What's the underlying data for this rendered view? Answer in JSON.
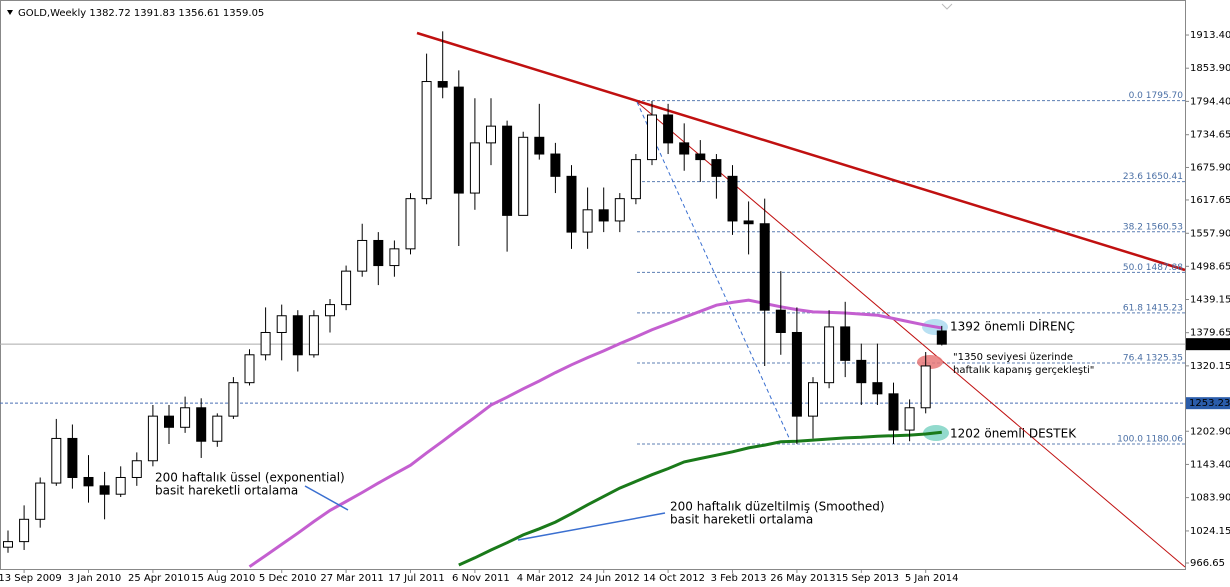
{
  "chart_data": {
    "type": "candlestick",
    "title": "GOLD,Weekly  1382.72 1391.83 1356.61 1359.05",
    "categories": [
      null,
      "13 Sep 2009",
      null,
      null,
      null,
      "3 Jan 2010",
      null,
      null,
      null,
      "25 Apr 2010",
      null,
      null,
      null,
      "15 Aug 2010",
      null,
      null,
      null,
      "5 Dec 2010",
      null,
      null,
      null,
      "27 Mar 2011",
      null,
      null,
      null,
      "17 Jul 2011",
      null,
      null,
      null,
      "6 Nov 2011",
      null,
      null,
      null,
      "4 Mar 2012",
      null,
      null,
      null,
      "24 Jun 2012",
      null,
      null,
      null,
      "14 Oct 2012",
      null,
      null,
      null,
      "3 Feb 2013",
      null,
      null,
      null,
      "26 May 2013",
      null,
      null,
      null,
      "15 Sep 2013",
      null,
      null,
      null,
      "5 Jan 2014",
      null
    ],
    "open": [
      995,
      1005,
      1045,
      1110,
      1190,
      1120,
      1105,
      1090,
      1120,
      1150,
      1230,
      1210,
      1245,
      1185,
      1230,
      1290,
      1340,
      1380,
      1410,
      1340,
      1410,
      1430,
      1490,
      1545,
      1500,
      1530,
      1620,
      1830,
      1820,
      1630,
      1720,
      1750,
      1590,
      1730,
      1700,
      1660,
      1560,
      1600,
      1580,
      1620,
      1690,
      1770,
      1720,
      1700,
      1690,
      1660,
      1580,
      1575,
      1420,
      1380,
      1230,
      1290,
      1390,
      1330,
      1290,
      1270,
      1205,
      1245,
      1382.72
    ],
    "high": [
      1025,
      1070,
      1120,
      1225,
      1215,
      1160,
      1130,
      1140,
      1165,
      1250,
      1250,
      1265,
      1262,
      1235,
      1300,
      1350,
      1425,
      1430,
      1420,
      1420,
      1440,
      1500,
      1575,
      1560,
      1545,
      1630,
      1880,
      1920,
      1850,
      1800,
      1800,
      1760,
      1740,
      1790,
      1720,
      1680,
      1640,
      1640,
      1630,
      1700,
      1795,
      1790,
      1755,
      1725,
      1700,
      1680,
      1615,
      1620,
      1490,
      1425,
      1300,
      1420,
      1435,
      1360,
      1360,
      1290,
      1260,
      1345,
      1391.83
    ],
    "low": [
      985,
      990,
      1030,
      1105,
      1100,
      1075,
      1045,
      1085,
      1105,
      1140,
      1180,
      1200,
      1155,
      1175,
      1225,
      1285,
      1330,
      1330,
      1310,
      1335,
      1380,
      1420,
      1480,
      1465,
      1480,
      1520,
      1610,
      1800,
      1535,
      1600,
      1680,
      1525,
      1590,
      1690,
      1630,
      1530,
      1530,
      1560,
      1560,
      1610,
      1680,
      1700,
      1670,
      1650,
      1620,
      1555,
      1520,
      1320,
      1340,
      1180,
      1190,
      1280,
      1300,
      1250,
      1250,
      1180,
      1185,
      1235,
      1356.61
    ],
    "close": [
      1005,
      1045,
      1110,
      1190,
      1120,
      1105,
      1090,
      1120,
      1150,
      1230,
      1210,
      1245,
      1185,
      1230,
      1290,
      1340,
      1380,
      1410,
      1340,
      1410,
      1430,
      1490,
      1545,
      1500,
      1530,
      1620,
      1830,
      1820,
      1630,
      1720,
      1750,
      1590,
      1730,
      1700,
      1660,
      1560,
      1600,
      1580,
      1620,
      1690,
      1770,
      1720,
      1700,
      1690,
      1660,
      1580,
      1575,
      1420,
      1380,
      1230,
      1290,
      1390,
      1330,
      1290,
      1270,
      1205,
      1245,
      1320,
      1359.05
    ],
    "up_color": "#ffffff",
    "down_color": "#000000",
    "moving_averages": [
      {
        "color": "#c45fd0",
        "values": [
          null,
          null,
          null,
          null,
          null,
          null,
          null,
          null,
          null,
          null,
          null,
          null,
          null,
          null,
          null,
          960,
          980,
          1000,
          1020,
          1041,
          1061,
          1077,
          1093,
          1110,
          1126,
          1142,
          1164,
          1185,
          1207,
          1228,
          1250,
          1264,
          1279,
          1293,
          1308,
          1322,
          1335,
          1347,
          1360,
          1372,
          1385,
          1396,
          1407,
          1418,
          1429,
          1434,
          1438,
          1432,
          1426,
          1421,
          1417,
          1416,
          1415,
          1413,
          1411,
          1405,
          1399,
          1393,
          1388
        ]
      },
      {
        "color": "#1a7a1a",
        "values": [
          null,
          null,
          null,
          null,
          null,
          null,
          null,
          null,
          null,
          null,
          null,
          null,
          null,
          null,
          null,
          null,
          null,
          null,
          null,
          null,
          null,
          null,
          null,
          null,
          null,
          null,
          null,
          null,
          963,
          976,
          990,
          1003,
          1017,
          1028,
          1040,
          1055,
          1071,
          1086,
          1101,
          1113,
          1125,
          1136,
          1148,
          1154,
          1160,
          1166,
          1173,
          1178,
          1184,
          1185,
          1187,
          1189,
          1191,
          1192,
          1194,
          1195,
          1196,
          1198,
          1201
        ]
      }
    ],
    "ylim": [
      954.1,
      1976.2
    ],
    "yticks": [
      {
        "value": 1913.4,
        "label": "1913.40"
      },
      {
        "value": 1853.9,
        "label": "1853.90"
      },
      {
        "value": 1794.4,
        "label": "1794.40"
      },
      {
        "value": 1734.65,
        "label": "1734.65"
      },
      {
        "value": 1675.9,
        "label": "1675.90"
      },
      {
        "value": 1617.65,
        "label": "1617.65"
      },
      {
        "value": 1557.9,
        "label": "1557.90"
      },
      {
        "value": 1498.65,
        "label": "1498.65"
      },
      {
        "value": 1439.15,
        "label": "1439.15"
      },
      {
        "value": 1379.65,
        "label": "1379.65"
      },
      {
        "value": 1320.15,
        "label": "1320.15"
      },
      {
        "value": 1202.9,
        "label": "1202.90"
      },
      {
        "value": 1143.4,
        "label": "1143.40"
      },
      {
        "value": 1083.9,
        "label": "1083.90"
      },
      {
        "value": 1024.15,
        "label": "1024.15"
      },
      {
        "value": 966.65,
        "label": "966.65"
      }
    ],
    "fib_levels": [
      {
        "value": 1795.7,
        "label": "0.0 1795.70"
      },
      {
        "value": 1650.41,
        "label": "23.6 1650.41"
      },
      {
        "value": 1560.53,
        "label": "38.2 1560.53"
      },
      {
        "value": 1487.88,
        "label": "50.0 1487.88"
      },
      {
        "value": 1415.23,
        "label": "61.8 1415.23"
      },
      {
        "value": 1325.35,
        "label": "76.4 1325.35"
      },
      {
        "value": 1180.06,
        "label": "100.0 1180.06"
      }
    ],
    "price_lines": [
      {
        "value": 1253.23,
        "label": "1253.23",
        "color": "#2a5caa"
      },
      {
        "value": 1359.05,
        "label": "1359.05",
        "color": "#000000"
      }
    ],
    "annotations": [
      "1392 önemli DİRENÇ",
      "\"1350 seviyesi üzerinde",
      "haftalık kapanış gerçekleşti\"",
      "1202 önemli DESTEK",
      "200 haftalık üssel (exponential)",
      "basit hareketli ortalama",
      "200 haftalık düzeltilmiş (Smoothed)",
      "basit hareketli ortalama"
    ]
  }
}
